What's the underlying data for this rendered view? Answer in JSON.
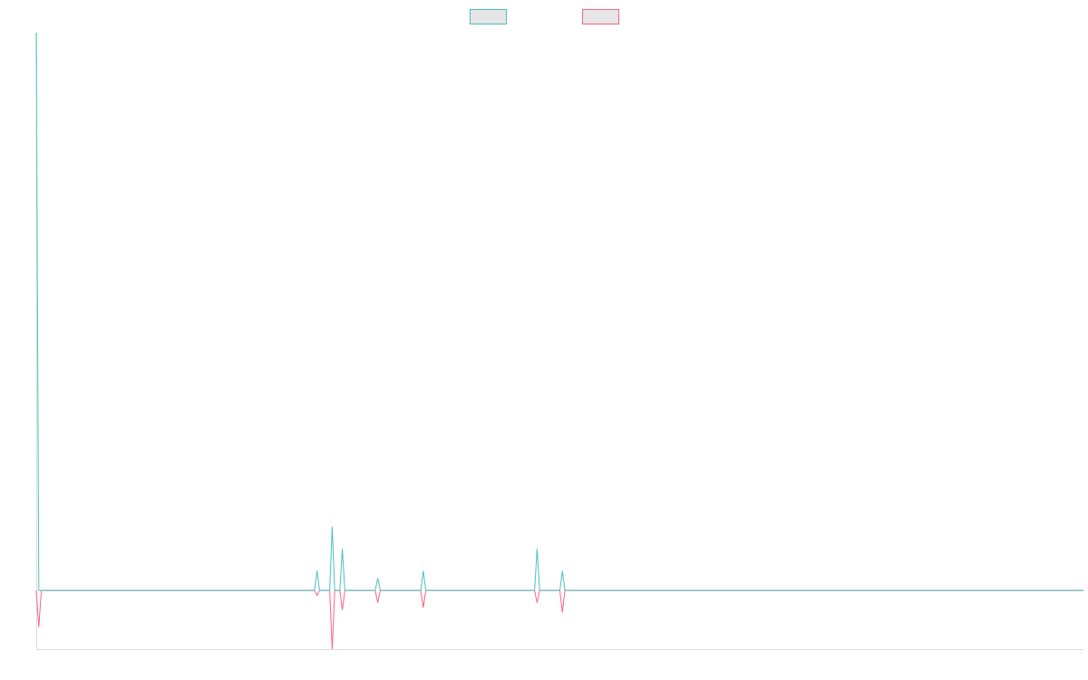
{
  "chart_data": {
    "type": "line",
    "title": "",
    "xlabel": "",
    "ylabel": "",
    "legend_position": "top-center",
    "grid": false,
    "xlim": [
      0,
      414
    ],
    "ylim": [
      -24,
      228
    ],
    "baseline": 0,
    "x": [
      0,
      1,
      2,
      110,
      111,
      112,
      116,
      117,
      118,
      120,
      121,
      122,
      134,
      135,
      136,
      152,
      153,
      154,
      197,
      198,
      199,
      207,
      208,
      209,
      414
    ],
    "series": [
      {
        "name": "",
        "color": "#4bc0c0",
        "fill": "#e6e6e6",
        "values": [
          228,
          0,
          0,
          0,
          8,
          0,
          0,
          26,
          0,
          0,
          17,
          0,
          0,
          5,
          0,
          0,
          8,
          0,
          0,
          17,
          0,
          0,
          8,
          0,
          0
        ]
      },
      {
        "name": "",
        "color": "#ff6384",
        "fill": "#e6e6e6",
        "values": [
          0,
          -15,
          0,
          0,
          -2,
          0,
          0,
          -24,
          0,
          0,
          -8,
          0,
          0,
          -5,
          0,
          0,
          -7,
          0,
          0,
          -5,
          0,
          0,
          -9,
          0,
          0
        ]
      }
    ]
  }
}
